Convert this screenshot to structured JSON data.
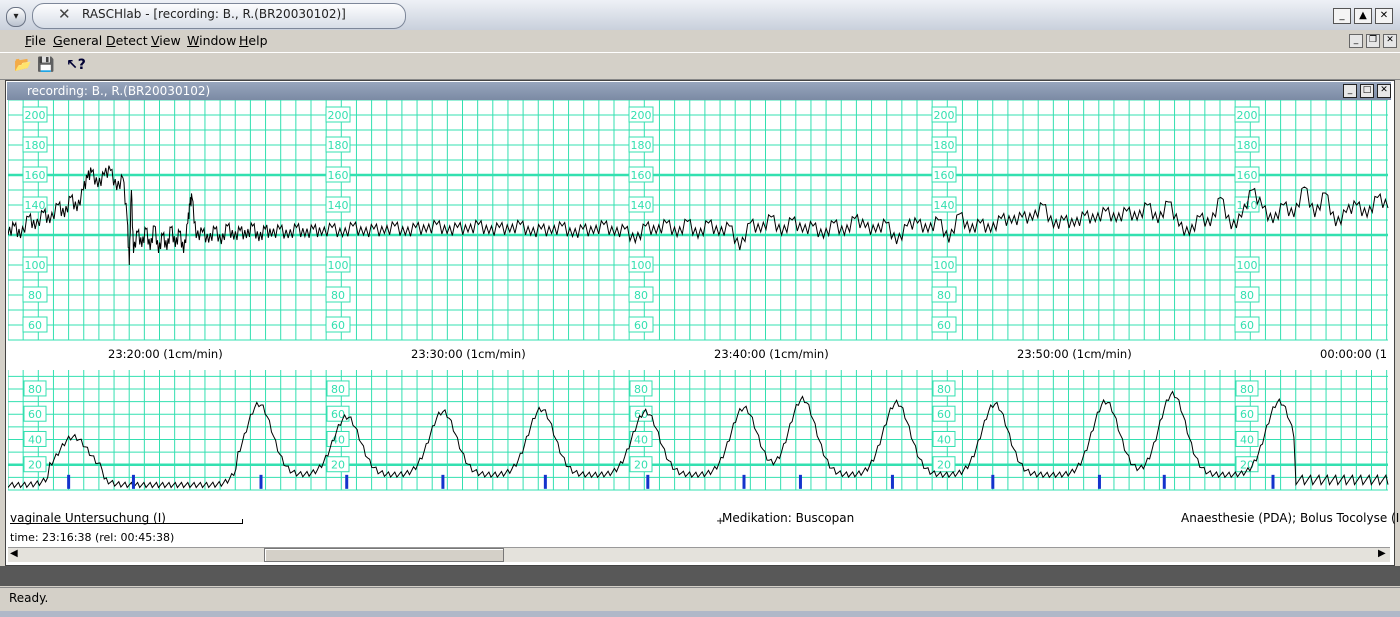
{
  "window": {
    "title": "RASCHlab  - [recording: B., R.(BR20030102)]",
    "app_icon": "x-icon"
  },
  "menu": [
    "File",
    "General",
    "Detect",
    "View",
    "Window",
    "Help"
  ],
  "toolbar": [
    "open-folder-icon",
    "save-icon",
    "help-icon"
  ],
  "child_window": {
    "title": "recording: B., R.(BR20030102)"
  },
  "ctg": {
    "grid_color": "#33e0b0",
    "fhr": {
      "labels": [
        "200",
        "180",
        "160",
        "140",
        "100",
        "80",
        "60"
      ],
      "label_values": [
        200,
        180,
        160,
        140,
        100,
        80,
        60
      ],
      "ylim": [
        50,
        210
      ],
      "trace": [
        [
          0,
          120
        ],
        [
          3,
          126
        ],
        [
          6,
          118
        ],
        [
          10,
          132
        ],
        [
          13,
          124
        ],
        [
          17,
          135
        ],
        [
          20,
          128
        ],
        [
          24,
          140
        ],
        [
          27,
          132
        ],
        [
          30,
          145
        ],
        [
          33,
          136
        ],
        [
          36,
          150
        ],
        [
          38,
          158
        ],
        [
          40,
          162
        ],
        [
          43,
          152
        ],
        [
          46,
          160
        ],
        [
          49,
          163
        ],
        [
          52,
          150
        ],
        [
          55,
          158
        ],
        [
          57,
          130
        ],
        [
          58,
          100
        ],
        [
          59,
          150
        ],
        [
          60,
          108
        ],
        [
          62,
          122
        ],
        [
          64,
          112
        ],
        [
          66,
          124
        ],
        [
          68,
          110
        ],
        [
          70,
          126
        ],
        [
          72,
          108
        ],
        [
          74,
          120
        ],
        [
          76,
          110
        ],
        [
          78,
          125
        ],
        [
          80,
          112
        ],
        [
          82,
          122
        ],
        [
          84,
          108
        ],
        [
          86,
          128
        ],
        [
          87,
          140
        ],
        [
          88,
          145
        ],
        [
          90,
          118
        ],
        [
          93,
          122
        ],
        [
          96,
          115
        ],
        [
          99,
          124
        ],
        [
          102,
          114
        ],
        [
          105,
          126
        ],
        [
          108,
          117
        ],
        [
          111,
          123
        ],
        [
          114,
          118
        ],
        [
          117,
          126
        ],
        [
          120,
          116
        ],
        [
          123,
          124
        ],
        [
          126,
          119
        ],
        [
          130,
          124
        ],
        [
          134,
          118
        ],
        [
          138,
          125
        ],
        [
          142,
          119
        ],
        [
          146,
          124
        ],
        [
          150,
          120
        ],
        [
          155,
          125
        ],
        [
          160,
          119
        ],
        [
          165,
          126
        ],
        [
          170,
          120
        ],
        [
          175,
          124
        ],
        [
          180,
          121
        ],
        [
          185,
          126
        ],
        [
          190,
          120
        ],
        [
          195,
          125
        ],
        [
          200,
          122
        ],
        [
          205,
          127
        ],
        [
          210,
          121
        ],
        [
          215,
          125
        ],
        [
          220,
          122
        ],
        [
          225,
          127
        ],
        [
          230,
          121
        ],
        [
          235,
          125
        ],
        [
          240,
          122
        ],
        [
          245,
          127
        ],
        [
          250,
          120
        ],
        [
          255,
          124
        ],
        [
          260,
          121
        ],
        [
          265,
          126
        ],
        [
          270,
          119
        ],
        [
          275,
          124
        ],
        [
          280,
          121
        ],
        [
          285,
          127
        ],
        [
          290,
          120
        ],
        [
          295,
          124
        ],
        [
          300,
          115
        ],
        [
          305,
          126
        ],
        [
          310,
          121
        ],
        [
          315,
          128
        ],
        [
          320,
          119
        ],
        [
          325,
          129
        ],
        [
          330,
          118
        ],
        [
          335,
          128
        ],
        [
          340,
          120
        ],
        [
          345,
          126
        ],
        [
          350,
          110
        ],
        [
          355,
          128
        ],
        [
          360,
          122
        ],
        [
          365,
          132
        ],
        [
          370,
          120
        ],
        [
          375,
          130
        ],
        [
          380,
          122
        ],
        [
          385,
          126
        ],
        [
          390,
          118
        ],
        [
          395,
          128
        ],
        [
          400,
          120
        ],
        [
          405,
          131
        ],
        [
          410,
          125
        ],
        [
          415,
          122
        ],
        [
          420,
          128
        ],
        [
          425,
          114
        ],
        [
          430,
          126
        ],
        [
          435,
          128
        ],
        [
          440,
          122
        ],
        [
          445,
          130
        ],
        [
          450,
          115
        ],
        [
          455,
          134
        ],
        [
          460,
          122
        ],
        [
          465,
          128
        ],
        [
          470,
          122
        ],
        [
          475,
          131
        ],
        [
          480,
          128
        ],
        [
          485,
          132
        ],
        [
          490,
          130
        ],
        [
          495,
          140
        ],
        [
          500,
          125
        ],
        [
          505,
          130
        ],
        [
          510,
          126
        ],
        [
          515,
          133
        ],
        [
          520,
          129
        ],
        [
          525,
          136
        ],
        [
          530,
          129
        ],
        [
          535,
          136
        ],
        [
          540,
          130
        ],
        [
          545,
          140
        ],
        [
          550,
          128
        ],
        [
          555,
          142
        ],
        [
          560,
          126
        ],
        [
          565,
          120
        ],
        [
          570,
          132
        ],
        [
          575,
          126
        ],
        [
          580,
          145
        ],
        [
          585,
          124
        ],
        [
          590,
          132
        ],
        [
          595,
          150
        ],
        [
          600,
          138
        ],
        [
          605,
          128
        ],
        [
          610,
          140
        ],
        [
          615,
          132
        ],
        [
          620,
          152
        ],
        [
          625,
          132
        ],
        [
          630,
          148
        ],
        [
          635,
          126
        ],
        [
          640,
          135
        ],
        [
          645,
          140
        ],
        [
          650,
          132
        ],
        [
          655,
          145
        ],
        [
          660,
          138
        ]
      ]
    },
    "time_axis": [
      {
        "time": "23:20:00",
        "scale": "(1cm/min)"
      },
      {
        "time": "23:30:00",
        "scale": "(1cm/min)"
      },
      {
        "time": "23:40:00",
        "scale": "(1cm/min)"
      },
      {
        "time": "23:50:00",
        "scale": "(1cm/min)"
      },
      {
        "time": "00:00:00",
        "scale": "(1"
      }
    ],
    "toco": {
      "labels": [
        "80",
        "60",
        "40",
        "20"
      ],
      "label_values": [
        80,
        60,
        40,
        20
      ],
      "ylim": [
        0,
        90
      ],
      "contraction_peaks": [
        30,
        38,
        120,
        162,
        208,
        255,
        305,
        352,
        380,
        425,
        472,
        525,
        557,
        608
      ],
      "contraction_heights": [
        38,
        20,
        68,
        58,
        62,
        64,
        62,
        65,
        72,
        69,
        68,
        70,
        76,
        70
      ],
      "baseline_marks": [
        29,
        60,
        121,
        162,
        208,
        257,
        306,
        352,
        379,
        423,
        471,
        522,
        553,
        605
      ]
    }
  },
  "annotations": {
    "left": "vaginale Untersuchung (I)",
    "middle": "Medikation: Buscopan",
    "right": "Anaesthesie (PDA); Bolus Tocolyse (I)",
    "time": "time: 23:16:38 (rel: 00:45:38)"
  },
  "status": "Ready."
}
